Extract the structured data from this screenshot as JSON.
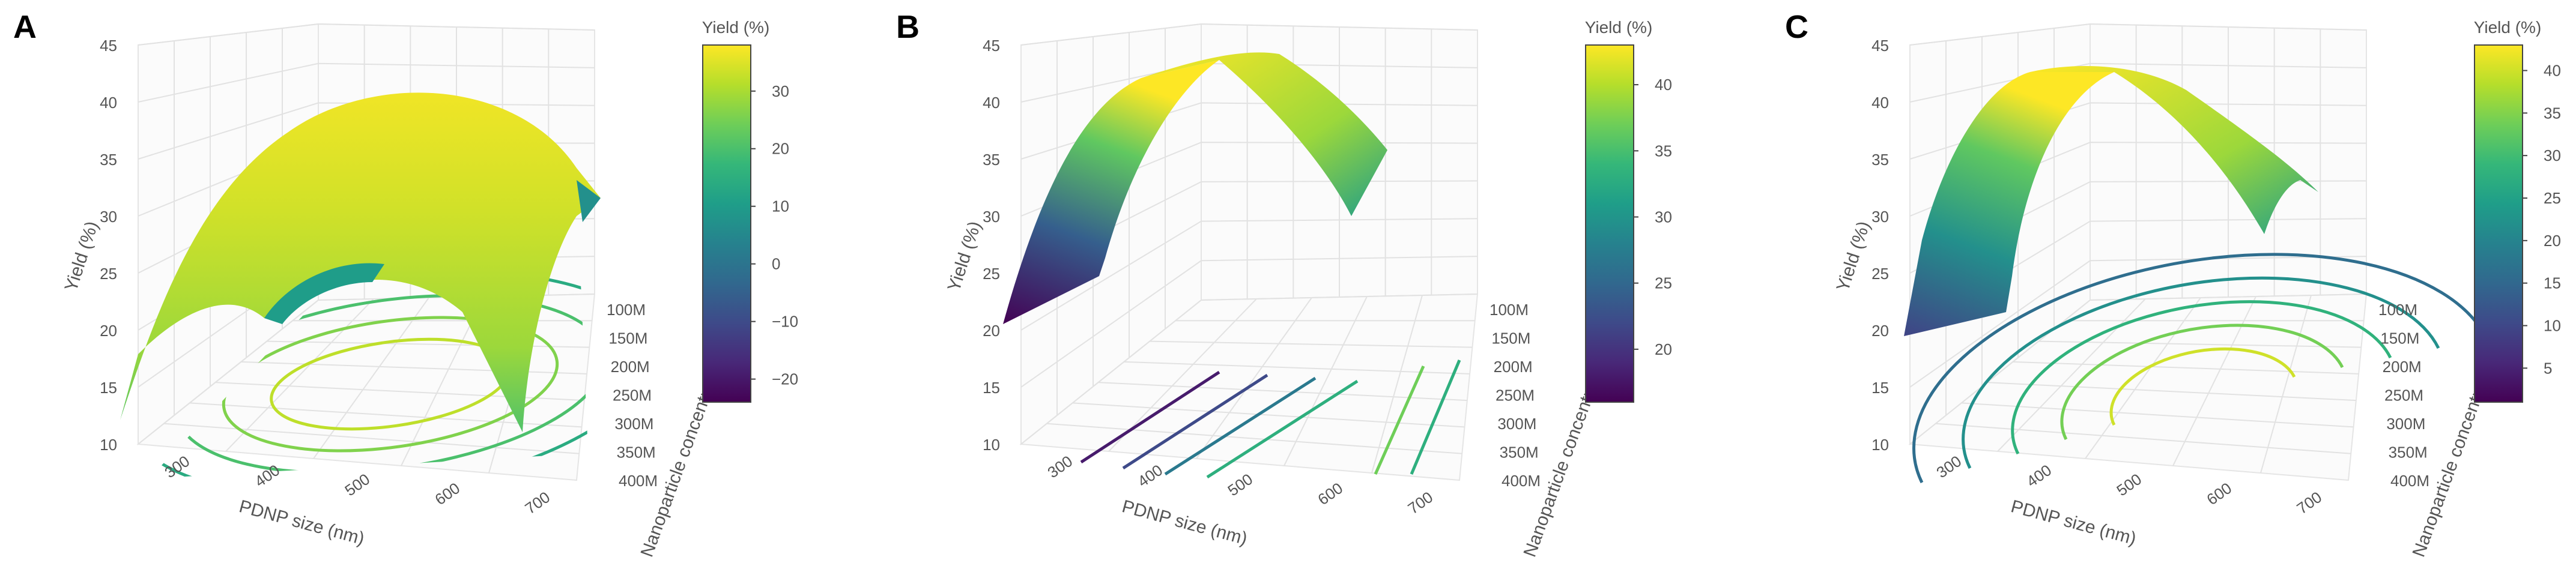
{
  "panels": [
    {
      "id": "A",
      "label": "A"
    },
    {
      "id": "B",
      "label": "B"
    },
    {
      "id": "C",
      "label": "C"
    }
  ],
  "chart_data": [
    {
      "type": "surface",
      "panel": "A",
      "z_label": "Yield (%)",
      "x_label": "PDNP size (nm)",
      "y_label": "Nanoparticle concentration (NP/ml)",
      "colorbar_title": "Yield (%)",
      "z_ticks": [
        "10",
        "15",
        "20",
        "25",
        "30",
        "35",
        "40",
        "45"
      ],
      "x_ticks": [
        "300",
        "400",
        "500",
        "600",
        "700"
      ],
      "y_ticks": [
        "100M",
        "150M",
        "200M",
        "250M",
        "300M",
        "350M",
        "400M"
      ],
      "colorbar_ticks": [
        "30",
        "20",
        "10",
        "0",
        "−10",
        "−20"
      ],
      "colorbar_range": [
        -24,
        38
      ],
      "colorscale": "viridis",
      "zlim": [
        10,
        45
      ],
      "surface_peak": {
        "x": 500,
        "y": "250M",
        "z": 39.5
      },
      "contours": "concentric ellipses on floor"
    },
    {
      "type": "surface",
      "panel": "B",
      "z_label": "Yield (%)",
      "x_label": "PDNP size (nm)",
      "y_label": "Nanoparticle concentration (NP/ml)",
      "colorbar_title": "Yield (%)",
      "z_ticks": [
        "10",
        "15",
        "20",
        "25",
        "30",
        "35",
        "40",
        "45"
      ],
      "x_ticks": [
        "300",
        "400",
        "500",
        "600",
        "700"
      ],
      "y_ticks": [
        "100M",
        "150M",
        "200M",
        "250M",
        "300M",
        "350M",
        "400M"
      ],
      "colorbar_ticks": [
        "40",
        "35",
        "30",
        "25",
        "20"
      ],
      "colorbar_range": [
        16,
        43
      ],
      "colorscale": "viridis",
      "zlim": [
        10,
        45
      ],
      "surface_peak": {
        "x": 550,
        "z": 43
      },
      "contours": "parallel lines on floor"
    },
    {
      "type": "surface",
      "panel": "C",
      "z_label": "Yield (%)",
      "x_label": "PDNP size (nm)",
      "y_label": "Nanoparticle concentration (NP/ml)",
      "colorbar_title": "Yield (%)",
      "z_ticks": [
        "10",
        "15",
        "20",
        "25",
        "30",
        "35",
        "40",
        "45"
      ],
      "x_ticks": [
        "300",
        "400",
        "500",
        "600",
        "700"
      ],
      "y_ticks": [
        "100M",
        "150M",
        "200M",
        "250M",
        "300M",
        "350M",
        "400M"
      ],
      "colorbar_ticks": [
        "40",
        "35",
        "30",
        "25",
        "20",
        "15",
        "10",
        "5"
      ],
      "colorbar_range": [
        1,
        43
      ],
      "colorscale": "viridis",
      "zlim": [
        10,
        45
      ],
      "surface_peak": {
        "x": 550,
        "z": 43
      },
      "contours": "nested arcs on floor"
    }
  ]
}
